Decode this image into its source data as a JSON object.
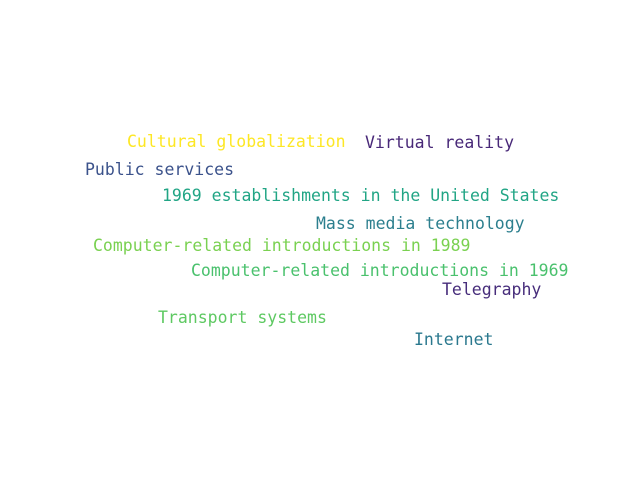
{
  "word_cloud": {
    "words": [
      {
        "text": "Cultural globalization",
        "color": "#fde725"
      },
      {
        "text": "Virtual reality",
        "color": "#482878"
      },
      {
        "text": "Public services",
        "color": "#3b528b"
      },
      {
        "text": "1969 establishments in the United States",
        "color": "#21a585"
      },
      {
        "text": "Mass media technology",
        "color": "#2c7f8e"
      },
      {
        "text": "Computer-related introductions in 1989",
        "color": "#7ad151"
      },
      {
        "text": "Computer-related introductions in 1969",
        "color": "#4ac16d"
      },
      {
        "text": "Telegraphy",
        "color": "#472d7b"
      },
      {
        "text": "Transport systems",
        "color": "#5ec962"
      },
      {
        "text": "Internet",
        "color": "#2a788e"
      }
    ]
  }
}
